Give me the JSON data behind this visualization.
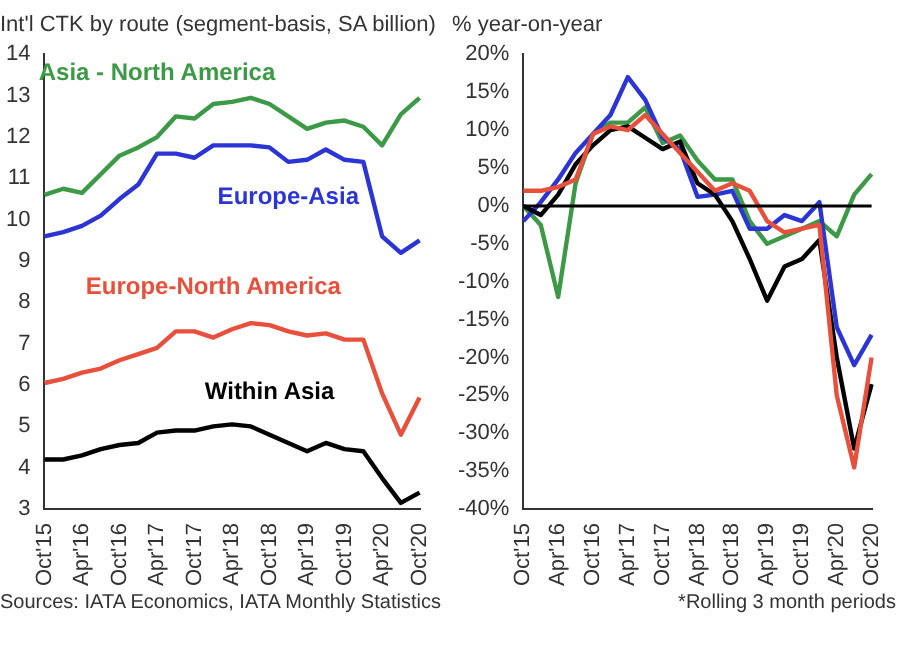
{
  "chart_data": [
    {
      "type": "line",
      "title": "Int'l CTK by route (segment-basis, SA billion)",
      "categories": [
        "Oct'15",
        null,
        "Apr'16",
        null,
        "Oct'16",
        null,
        "Apr'17",
        null,
        "Oct'17",
        null,
        "Apr'18",
        null,
        "Oct'18",
        null,
        "Apr'19",
        null,
        "Oct'19",
        null,
        "Apr'20",
        null,
        "Oct'20"
      ],
      "series": [
        {
          "name": "Asia - North America",
          "color": "#3c9a46",
          "values": [
            10.6,
            10.75,
            10.65,
            11.1,
            11.55,
            11.75,
            12.0,
            12.5,
            12.45,
            12.8,
            12.85,
            12.95,
            12.8,
            12.5,
            12.2,
            12.35,
            12.4,
            12.25,
            11.8,
            12.55,
            12.95
          ]
        },
        {
          "name": "Europe-Asia",
          "color": "#2b35d6",
          "values": [
            9.6,
            9.7,
            9.85,
            10.1,
            10.5,
            10.85,
            11.6,
            11.6,
            11.5,
            11.8,
            11.8,
            11.8,
            11.75,
            11.4,
            11.45,
            11.7,
            11.45,
            11.4,
            9.6,
            9.2,
            9.5
          ]
        },
        {
          "name": "Europe-North America",
          "color": "#e8503c",
          "values": [
            6.05,
            6.15,
            6.3,
            6.4,
            6.6,
            6.75,
            6.9,
            7.3,
            7.3,
            7.15,
            7.35,
            7.5,
            7.45,
            7.3,
            7.2,
            7.25,
            7.1,
            7.1,
            5.8,
            4.8,
            5.7
          ]
        },
        {
          "name": "Within Asia",
          "color": "#000000",
          "values": [
            4.2,
            4.2,
            4.3,
            4.45,
            4.55,
            4.6,
            4.85,
            4.9,
            4.9,
            5.0,
            5.05,
            5.0,
            4.8,
            4.6,
            4.4,
            4.6,
            4.45,
            4.4,
            3.75,
            3.15,
            3.4
          ]
        }
      ],
      "ylim": [
        3,
        14
      ],
      "yticks": [
        3,
        4,
        5,
        6,
        7,
        8,
        9,
        10,
        11,
        12,
        13,
        14
      ],
      "grid": false,
      "legend": false,
      "marker": "none",
      "line_style": "solid",
      "annotations": [
        "Sources: IATA Economics, IATA Monthly Statistics"
      ]
    },
    {
      "type": "line",
      "title": "% year-on-year",
      "categories": [
        "Oct'15",
        null,
        "Apr'16",
        null,
        "Oct'16",
        null,
        "Apr'17",
        null,
        "Oct'17",
        null,
        "Apr'18",
        null,
        "Oct'18",
        null,
        "Apr'19",
        null,
        "Oct'19",
        null,
        "Apr'20",
        null,
        "Oct'20"
      ],
      "series": [
        {
          "color": "#e8503c",
          "values": [
            2,
            2,
            2.5,
            3.5,
            9.5,
            10.5,
            10,
            12,
            9.5,
            7,
            4.5,
            2,
            3,
            2,
            -2,
            -3.5,
            -3,
            -2.5,
            -25,
            -34.5,
            -20
          ]
        },
        {
          "color": "#000000",
          "values": [
            0,
            -1.2,
            1.5,
            5.5,
            8,
            10,
            10.5,
            9,
            7.5,
            8.5,
            3,
            1.5,
            -2,
            -7,
            -12.5,
            -8,
            -7,
            -4.5,
            -20,
            -32,
            -23.5
          ]
        },
        {
          "color": "#2b35d6",
          "values": [
            -2,
            0.5,
            3.5,
            7,
            9.5,
            12,
            17,
            14,
            9,
            7.5,
            1.2,
            1.5,
            2,
            -3,
            -3,
            -1.2,
            -2,
            0.5,
            -16,
            -21,
            -17
          ]
        },
        {
          "color": "#3c9a46",
          "values": [
            0,
            -2.5,
            -12,
            3,
            9.5,
            11,
            11,
            13,
            8.3,
            9.3,
            6,
            3.5,
            3.5,
            -2,
            -5,
            -4,
            -3,
            -2,
            -4,
            1.5,
            4.2
          ]
        }
      ],
      "ylim": [
        -40,
        20
      ],
      "yticks": [
        {
          "value": -40,
          "label": "-40%"
        },
        {
          "value": -35,
          "label": "-35%"
        },
        {
          "value": -30,
          "label": "-30%"
        },
        {
          "value": -25,
          "label": "-25%"
        },
        {
          "value": -20,
          "label": "-20%"
        },
        {
          "value": -15,
          "label": "-15%"
        },
        {
          "value": -10,
          "label": "-10%"
        },
        {
          "value": -5,
          "label": "-5%"
        },
        {
          "value": 0,
          "label": "0%"
        },
        {
          "value": 5,
          "label": "5%"
        },
        {
          "value": 10,
          "label": "10%"
        },
        {
          "value": 15,
          "label": "15%"
        },
        {
          "value": 20,
          "label": "20%"
        }
      ],
      "ref_lines": [
        {
          "axis": "y",
          "value": 0,
          "color": "#000000"
        }
      ],
      "grid": false,
      "legend": false,
      "marker": "none",
      "line_style": "solid",
      "annotations": [
        "*Rolling 3 month periods"
      ]
    }
  ]
}
